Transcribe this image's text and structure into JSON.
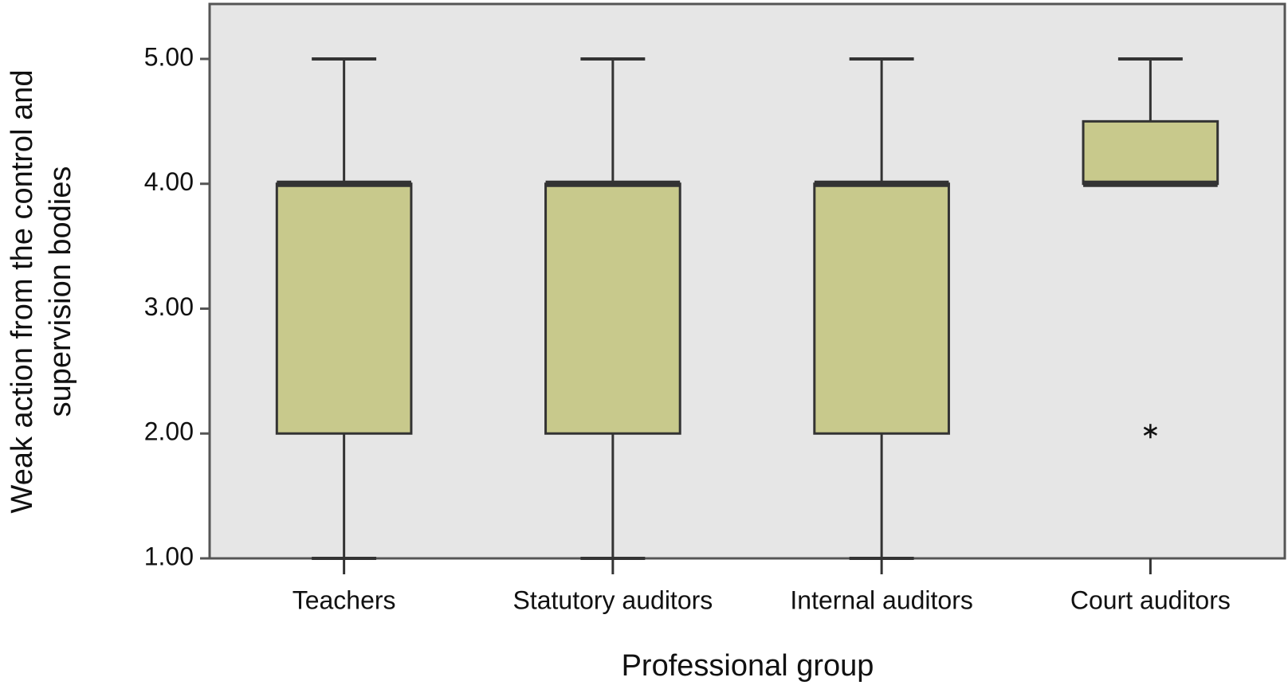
{
  "chart_data": {
    "type": "box",
    "x_label": "Professional group",
    "y_label": [
      "Weak action from the control and",
      "supervision bodies"
    ],
    "categories": [
      "Teachers",
      "Statutory auditors",
      "Internal auditors",
      "Court auditors"
    ],
    "boxes": [
      {
        "low": 1,
        "q1": 2,
        "median": 4,
        "q3": 4,
        "high": 5,
        "outliers": []
      },
      {
        "low": 1,
        "q1": 2,
        "median": 4,
        "q3": 4,
        "high": 5,
        "outliers": []
      },
      {
        "low": 1,
        "q1": 2,
        "median": 4,
        "q3": 4,
        "high": 5,
        "outliers": []
      },
      {
        "low": 4,
        "q1": 4,
        "median": 4,
        "q3": 4.5,
        "high": 5,
        "outliers": [
          2
        ]
      }
    ],
    "color": "#c8c98c",
    "background": "#e6e6e6",
    "ylim": [
      1,
      5.44
    ],
    "yticks": [
      {
        "value": 1,
        "label": "1.00"
      },
      {
        "value": 2,
        "label": "2.00"
      },
      {
        "value": 3,
        "label": "3.00"
      },
      {
        "value": 4,
        "label": "4.00"
      },
      {
        "value": 5,
        "label": "5.00"
      }
    ],
    "grid": false
  }
}
